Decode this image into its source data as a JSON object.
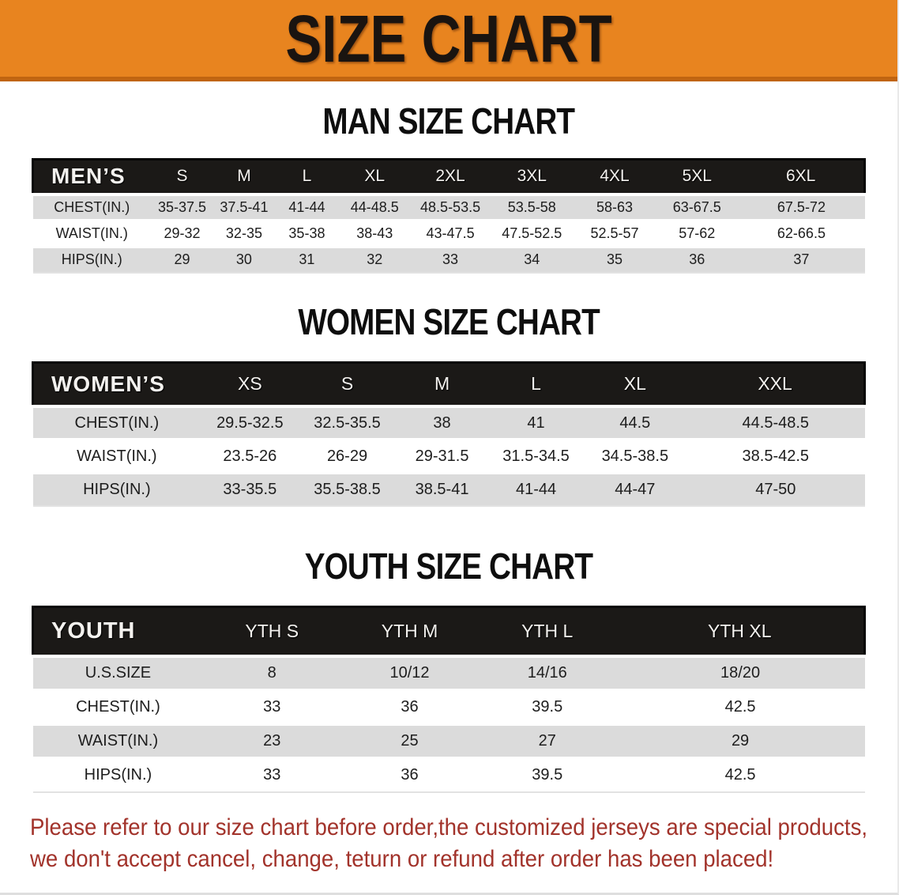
{
  "banner": {
    "title": "SIZE CHART",
    "bg_color": "#E8841F",
    "text_color": "#1a1410"
  },
  "sections": [
    {
      "title": "MAN SIZE CHART",
      "group_label": "MEN’S",
      "columns": [
        "S",
        "M",
        "L",
        "XL",
        "2XL",
        "3XL",
        "4XL",
        "5XL",
        "6XL"
      ],
      "rows": [
        {
          "label": "CHEST(IN.)",
          "values": [
            "35-37.5",
            "37.5-41",
            "41-44",
            "44-48.5",
            "48.5-53.5",
            "53.5-58",
            "58-63",
            "63-67.5",
            "67.5-72"
          ]
        },
        {
          "label": "WAIST(IN.)",
          "values": [
            "29-32",
            "32-35",
            "35-38",
            "38-43",
            "43-47.5",
            "47.5-52.5",
            "52.5-57",
            "57-62",
            "62-66.5"
          ]
        },
        {
          "label": "HIPS(IN.)",
          "values": [
            "29",
            "30",
            "31",
            "32",
            "33",
            "34",
            "35",
            "36",
            "37"
          ]
        }
      ]
    },
    {
      "title": "WOMEN SIZE CHART",
      "group_label": "WOMEN’S",
      "columns": [
        "XS",
        "S",
        "M",
        "L",
        "XL",
        "XXL"
      ],
      "rows": [
        {
          "label": "CHEST(IN.)",
          "values": [
            "29.5-32.5",
            "32.5-35.5",
            "38",
            "41",
            "44.5",
            "44.5-48.5"
          ]
        },
        {
          "label": "WAIST(IN.)",
          "values": [
            "23.5-26",
            "26-29",
            "29-31.5",
            "31.5-34.5",
            "34.5-38.5",
            "38.5-42.5"
          ]
        },
        {
          "label": "HIPS(IN.)",
          "values": [
            "33-35.5",
            "35.5-38.5",
            "38.5-41",
            "41-44",
            "44-47",
            "47-50"
          ]
        }
      ]
    },
    {
      "title": "YOUTH SIZE CHART",
      "group_label": "YOUTH",
      "columns": [
        "YTH S",
        "YTH M",
        "YTH L",
        "YTH XL"
      ],
      "rows": [
        {
          "label": "U.S.SIZE",
          "values": [
            "8",
            "10/12",
            "14/16",
            "18/20"
          ]
        },
        {
          "label": "CHEST(IN.)",
          "values": [
            "33",
            "36",
            "39.5",
            "42.5"
          ]
        },
        {
          "label": "WAIST(IN.)",
          "values": [
            "23",
            "25",
            "27",
            "29"
          ]
        },
        {
          "label": "HIPS(IN.)",
          "values": [
            "33",
            "36",
            "39.5",
            "42.5"
          ]
        }
      ]
    }
  ],
  "footer": {
    "line1": "Please refer to our size chart before order,the customized jerseys are special products,",
    "line2": "we don't accept cancel, change, teturn or refund after order has been placed!",
    "color": "#A2332B"
  }
}
